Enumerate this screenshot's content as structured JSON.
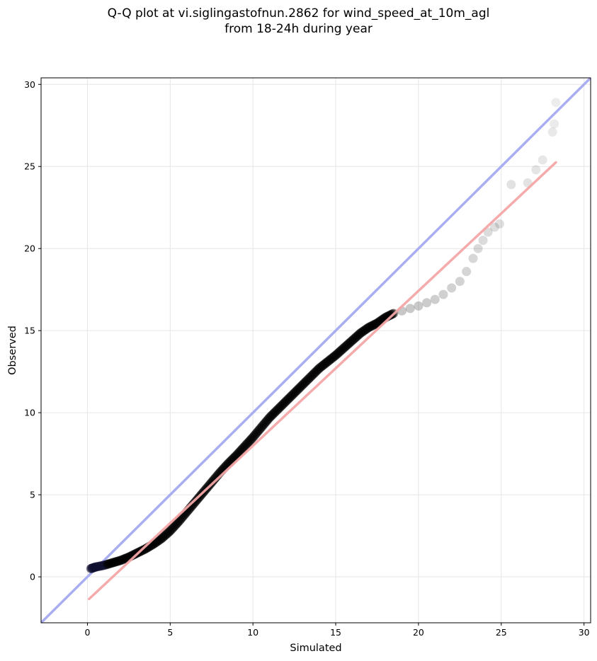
{
  "chart_data": {
    "type": "scatter",
    "title_line1": "Q-Q plot at vi.siglingastofnun.2862 for wind_speed_at_10m_agl",
    "title_line2": "from 18-24h during year",
    "xlabel": "Simulated",
    "ylabel": "Observed",
    "xlim": [
      -2.8,
      30.4
    ],
    "ylim": [
      -2.8,
      30.4
    ],
    "xticks": [
      0,
      5,
      10,
      15,
      20,
      25,
      30
    ],
    "yticks": [
      0,
      5,
      10,
      15,
      20,
      25,
      30
    ],
    "grid": true,
    "identity_line": {
      "color": "#a9aef2",
      "from": [
        -2.8,
        -2.8
      ],
      "to": [
        30.4,
        30.4
      ]
    },
    "fit_line": {
      "color": "#f4a6a6",
      "from": [
        0.1,
        -1.35
      ],
      "to": [
        28.3,
        25.25
      ]
    },
    "dense_quantiles": [
      [
        0.2,
        0.5
      ],
      [
        0.5,
        0.6
      ],
      [
        1.0,
        0.7
      ],
      [
        1.5,
        0.85
      ],
      [
        2.0,
        1.0
      ],
      [
        2.5,
        1.2
      ],
      [
        3.0,
        1.45
      ],
      [
        3.5,
        1.7
      ],
      [
        4.0,
        2.0
      ],
      [
        4.5,
        2.35
      ],
      [
        5.0,
        2.8
      ],
      [
        5.5,
        3.35
      ],
      [
        6.0,
        3.95
      ],
      [
        6.5,
        4.55
      ],
      [
        7.0,
        5.15
      ],
      [
        7.5,
        5.75
      ],
      [
        8.0,
        6.35
      ],
      [
        8.5,
        6.9
      ],
      [
        9.0,
        7.4
      ],
      [
        9.5,
        7.95
      ],
      [
        10.0,
        8.5
      ],
      [
        10.5,
        9.1
      ],
      [
        11.0,
        9.7
      ],
      [
        11.5,
        10.2
      ],
      [
        12.0,
        10.7
      ],
      [
        12.5,
        11.2
      ],
      [
        13.0,
        11.7
      ],
      [
        13.5,
        12.2
      ],
      [
        14.0,
        12.7
      ],
      [
        14.5,
        13.1
      ],
      [
        15.0,
        13.5
      ],
      [
        15.5,
        13.95
      ],
      [
        16.0,
        14.4
      ],
      [
        16.5,
        14.85
      ],
      [
        17.0,
        15.2
      ],
      [
        17.5,
        15.45
      ],
      [
        18.0,
        15.8
      ],
      [
        18.5,
        16.05
      ]
    ],
    "tail_quantiles": [
      [
        19.0,
        16.2
      ],
      [
        19.5,
        16.35
      ],
      [
        20.0,
        16.5
      ],
      [
        20.5,
        16.7
      ],
      [
        21.0,
        16.9
      ],
      [
        21.5,
        17.2
      ],
      [
        22.0,
        17.6
      ],
      [
        22.5,
        18.0
      ],
      [
        22.9,
        18.6
      ],
      [
        23.3,
        19.4
      ],
      [
        23.6,
        20.0
      ],
      [
        23.9,
        20.5
      ],
      [
        24.2,
        21.0
      ],
      [
        24.6,
        21.3
      ],
      [
        24.9,
        21.5
      ],
      [
        25.6,
        23.9
      ],
      [
        26.6,
        24.0
      ],
      [
        27.1,
        24.8
      ],
      [
        27.5,
        25.4
      ],
      [
        28.1,
        27.1
      ],
      [
        28.2,
        27.6
      ],
      [
        28.3,
        28.9
      ]
    ]
  }
}
